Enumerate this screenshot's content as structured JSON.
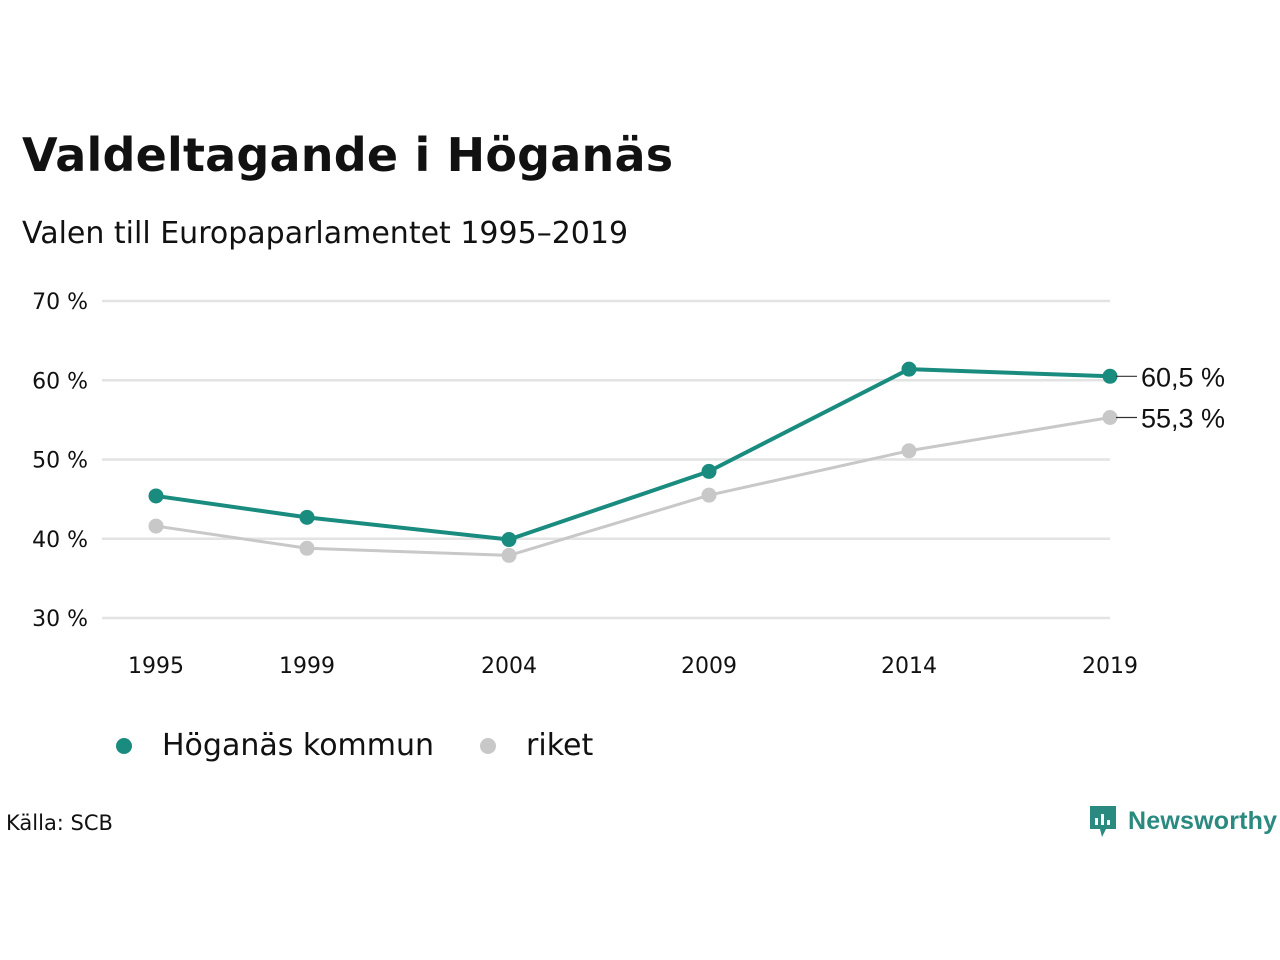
{
  "title": "Valdeltagande i Höganäs",
  "subtitle": "Valen till Europaparlamentet 1995–2019",
  "source": "Källa: SCB",
  "brand": {
    "name": "Newsworthy",
    "icon": "bar-chart-speech-bubble-icon",
    "color": "#2a8a80"
  },
  "chart_data": {
    "type": "line",
    "x": [
      "1995",
      "1999",
      "2004",
      "2009",
      "2014",
      "2019"
    ],
    "ylim": [
      30,
      70
    ],
    "y_ticks": [
      "30 %",
      "40 %",
      "50 %",
      "60 %",
      "70 %"
    ],
    "grid": true,
    "legend_position": "bottom-left",
    "series": [
      {
        "name": "Höganäs kommun",
        "color": "#1a8c7f",
        "values": [
          45.4,
          42.7,
          39.9,
          48.5,
          61.4,
          60.5
        ],
        "end_label": "60,5 %"
      },
      {
        "name": "riket",
        "color": "#c8c8c8",
        "values": [
          41.6,
          38.8,
          37.9,
          45.5,
          51.1,
          55.3
        ],
        "end_label": "55,3 %"
      }
    ]
  }
}
